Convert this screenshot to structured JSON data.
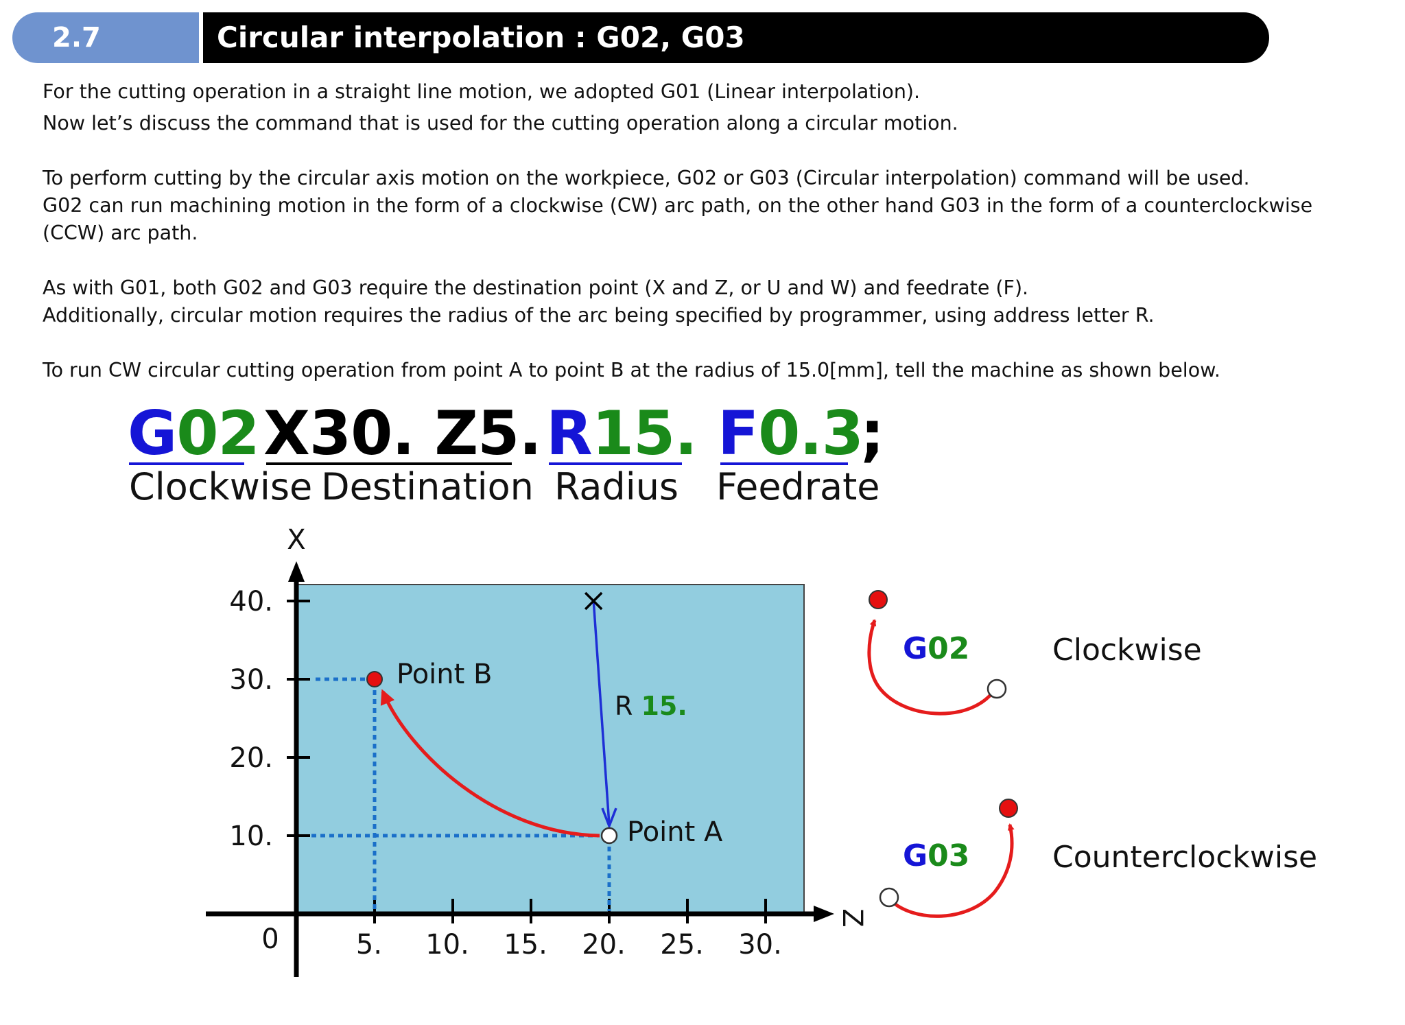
{
  "header": {
    "section_number": "2.7",
    "title": "Circular interpolation : G02, G03"
  },
  "paragraphs": [
    "For the cutting operation in a straight line motion, we adopted G01 (Linear interpolation).",
    "Now let’s discuss the command that is used for the cutting operation along a circular motion.",
    "To perform cutting by the circular axis motion on the workpiece, G02 or G03 (Circular interpolation) command will be used.",
    "G02 can run machining motion in the form of a clockwise (CW) arc path, on the other hand G03 in the form of a counterclockwise",
    "(CCW) arc path.",
    "As with G01, both G02 and G03 require the destination point (X and Z, or U and W) and feedrate (F).",
    "Additionally, circular motion requires the radius of the arc being specified by programmer, using address letter R.",
    "To run CW circular cutting operation from point A to point B at the radius of 15.0[mm], tell the machine as shown below."
  ],
  "command": {
    "g_letter": "G",
    "g_number": "02",
    "destination": "X30. Z5.",
    "r_letter": "R",
    "r_number": "15.",
    "f_letter": "F",
    "f_number": "0.3",
    "terminator": ";",
    "labels": {
      "g": "Clockwise",
      "destination": "Destination",
      "r": "Radius",
      "f": "Feedrate"
    }
  },
  "plot": {
    "x_axis_label": "X",
    "z_axis_label": "Z",
    "origin_label": "0",
    "x_ticks": [
      {
        "value": 10,
        "label": "10."
      },
      {
        "value": 20,
        "label": "20."
      },
      {
        "value": 30,
        "label": "30."
      },
      {
        "value": 40,
        "label": "40."
      }
    ],
    "z_ticks": [
      {
        "value": 5,
        "label": "5."
      },
      {
        "value": 10,
        "label": "10."
      },
      {
        "value": 15,
        "label": "15."
      },
      {
        "value": 20,
        "label": "20."
      },
      {
        "value": 25,
        "label": "25."
      },
      {
        "value": 30,
        "label": "30."
      }
    ],
    "point_a": {
      "label": "Point A",
      "z": 20,
      "x": 10
    },
    "point_b": {
      "label": "Point B",
      "z": 5,
      "x": 30
    },
    "arc_center": {
      "z": 19,
      "x": 40
    },
    "radius_label_prefix": "R ",
    "radius_label_value": "15.",
    "colors": {
      "workpiece": "#92cddf",
      "arc": "#e51c1c",
      "radius_arrow": "#1e2fd6",
      "guide": "#1a6fc9",
      "end_point": "#e51010"
    }
  },
  "legend": [
    {
      "code_letter": "G",
      "code_number": "02",
      "description": "Clockwise"
    },
    {
      "code_letter": "G",
      "code_number": "03",
      "description": "Counterclockwise"
    }
  ]
}
